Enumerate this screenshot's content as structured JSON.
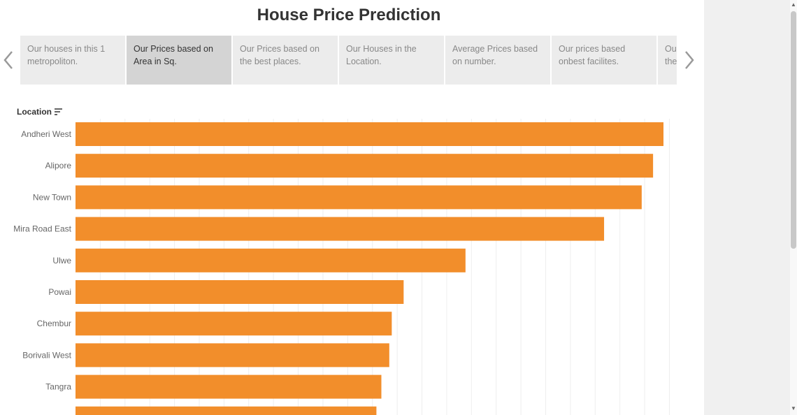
{
  "title": "House Price Prediction",
  "story_tabs": [
    {
      "label": "Our houses in this 1 metropoliton.",
      "active": false
    },
    {
      "label": "Our Prices based on Area in Sq.",
      "active": true
    },
    {
      "label": "Our Prices based on the best places.",
      "active": false
    },
    {
      "label": "Our Houses in the Location.",
      "active": false
    },
    {
      "label": "Average Prices based on number.",
      "active": false
    },
    {
      "label": "Our prices based onbest facilites.",
      "active": false
    },
    {
      "label": "Our Prices based on the places.",
      "active": false
    }
  ],
  "nav": {
    "prev_icon": "chevron-left-icon",
    "next_icon": "chevron-right-icon"
  },
  "chart_data": {
    "type": "bar",
    "orientation": "horizontal",
    "y_header": "Location",
    "categories": [
      "Andheri West",
      "Alipore",
      "New Town",
      "Mira Road East",
      "Ulwe",
      "Powai",
      "Chembur",
      "Borivali West",
      "Tangra",
      ""
    ],
    "values": [
      11.88,
      11.67,
      11.44,
      10.68,
      7.88,
      6.63,
      6.39,
      6.34,
      6.18,
      6.08
    ],
    "xlim": [
      0,
      12
    ],
    "grid": true,
    "bar_color": "#f28e2b"
  },
  "colors": {
    "bar": "#f28e2b",
    "grid": "#eeeeee",
    "label": "#666666"
  }
}
